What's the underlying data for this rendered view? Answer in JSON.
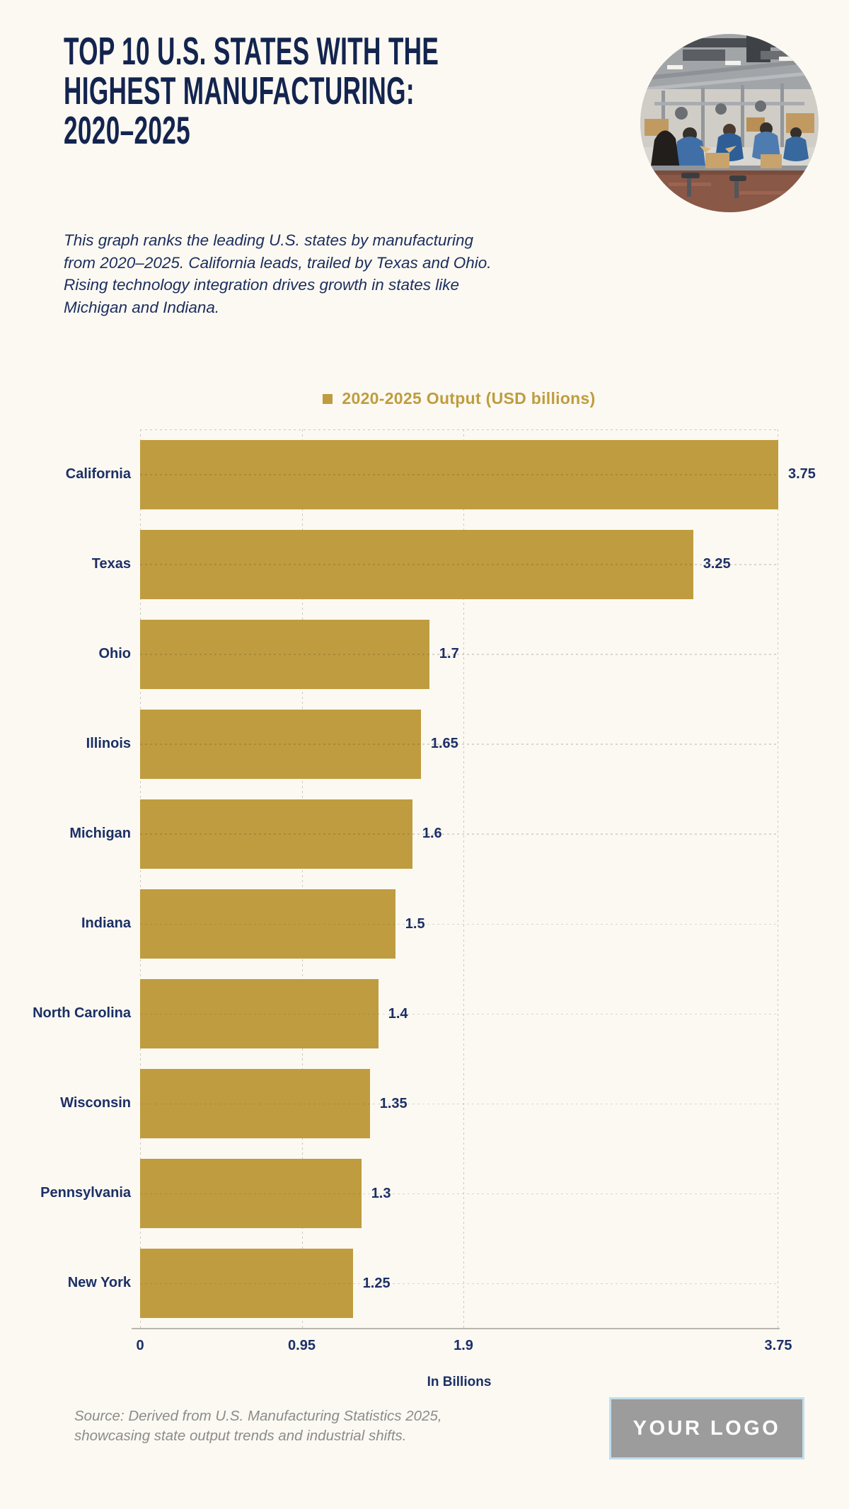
{
  "header": {
    "title_lines": [
      "TOP 10 U.S. STATES WITH THE",
      "HIGHEST MANUFACTURING:",
      "2020–2025"
    ],
    "description": "This graph ranks the leading U.S. states by manufacturing\nfrom 2020–2025. California leads, trailed by Texas and Ohio.\nRising technology integration drives growth in states like\nMichigan and Indiana.",
    "photo": "factory-workers-assembly-line-photo"
  },
  "chart_data": {
    "type": "bar",
    "orientation": "horizontal",
    "title": "",
    "legend": [
      {
        "label": "2020-2025 Output (USD billions)",
        "color": "#BF9C3F"
      }
    ],
    "legend_position": "top-center",
    "categories": [
      "California",
      "Texas",
      "Ohio",
      "Illinois",
      "Michigan",
      "Indiana",
      "North Carolina",
      "Wisconsin",
      "Pennsylvania",
      "New York"
    ],
    "values": [
      3.75,
      3.25,
      1.7,
      1.65,
      1.6,
      1.5,
      1.4,
      1.35,
      1.3,
      1.25
    ],
    "value_labels": [
      "3.75",
      "3.25",
      "1.7",
      "1.65",
      "1.6",
      "1.5",
      "1.4",
      "1.35",
      "1.3",
      "1.25"
    ],
    "xlabel": "In Billions",
    "ylabel": "",
    "xlim": [
      0,
      3.75
    ],
    "x_ticks": [
      {
        "label": "0",
        "value": 0
      },
      {
        "label": "0.95",
        "value": 0.95
      },
      {
        "label": "1.9",
        "value": 1.9
      },
      {
        "label": "3.75",
        "value": 3.75
      }
    ],
    "grid": "dotted",
    "bar_color": "#BF9C3F",
    "text_color": "#1C2F66"
  },
  "footer": {
    "source": "Source: Derived from U.S. Manufacturing Statistics 2025,\nshowcasing state output trends and industrial shifts.",
    "logo_text": "YOUR LOGO"
  },
  "colors": {
    "background": "#FBF9F2",
    "title_navy": "#13244F",
    "label_navy": "#1C2F66",
    "gold": "#BF9C3F",
    "source_gray": "#8C8C8C",
    "logo_gray": "#9C9C9C",
    "logo_border_blue": "#C2DDEC"
  }
}
